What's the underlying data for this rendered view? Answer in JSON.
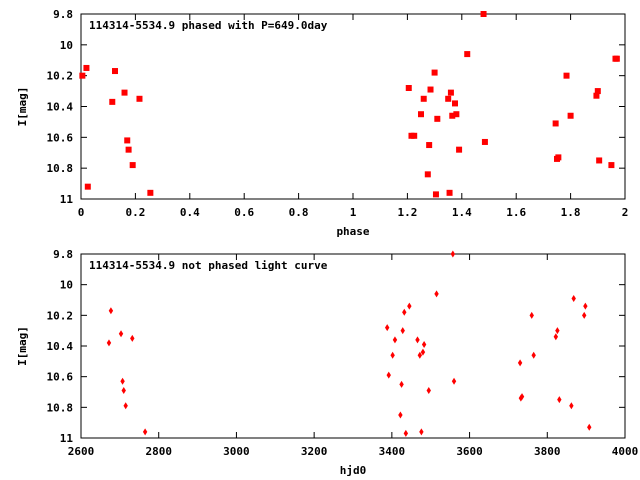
{
  "chart_data": [
    {
      "type": "scatter",
      "title": "114314-5534.9 phased with P=649.0day",
      "xlabel": "phase",
      "ylabel": "I[mag]",
      "xlim": [
        0,
        2
      ],
      "ylim": [
        9.8,
        11
      ],
      "y_inverted": true,
      "xticks": [
        "0",
        "0.2",
        "0.4",
        "0.6",
        "0.8",
        "1",
        "1.2",
        "1.4",
        "1.6",
        "1.8",
        "2"
      ],
      "yticks": [
        "9.8",
        "10",
        "10.2",
        "10.4",
        "10.6",
        "10.8",
        "11"
      ],
      "marker_color": "#ff0000",
      "series": [
        {
          "x": [
            0.005,
            0.02,
            0.025,
            0.115,
            0.125,
            0.16,
            0.17,
            0.175,
            0.19,
            0.215,
            0.255,
            1.205,
            1.215,
            1.225,
            1.25,
            1.26,
            1.275,
            1.28,
            1.285,
            1.3,
            1.305,
            1.31,
            1.35,
            1.355,
            1.36,
            1.365,
            1.375,
            1.38,
            1.39,
            1.42,
            1.48,
            1.485,
            1.745,
            1.75,
            1.755,
            1.785,
            1.8,
            1.895,
            1.9,
            1.905,
            1.95,
            1.965,
            1.97
          ],
          "y": [
            10.2,
            10.15,
            10.92,
            10.37,
            10.17,
            10.31,
            10.62,
            10.68,
            10.78,
            10.35,
            10.96,
            10.28,
            10.59,
            10.59,
            10.45,
            10.35,
            10.84,
            10.65,
            10.29,
            10.18,
            10.97,
            10.48,
            10.35,
            10.96,
            10.31,
            10.46,
            10.38,
            10.45,
            10.68,
            10.06,
            9.8,
            10.63,
            10.51,
            10.74,
            10.73,
            10.2,
            10.46,
            10.33,
            10.3,
            10.75,
            10.78,
            10.09,
            10.09
          ]
        }
      ]
    },
    {
      "type": "scatter",
      "title": "114314-5534.9 not phased light curve",
      "xlabel": "hjd0",
      "ylabel": "I[mag]",
      "xlim": [
        2600,
        4000
      ],
      "ylim": [
        9.8,
        11
      ],
      "y_inverted": true,
      "xticks": [
        "2600",
        "2800",
        "3000",
        "3200",
        "3400",
        "3600",
        "3800",
        "4000"
      ],
      "yticks": [
        "9.8",
        "10",
        "10.2",
        "10.4",
        "10.6",
        "10.8",
        "11"
      ],
      "marker_color": "#ff0000",
      "series": [
        {
          "x": [
            2672,
            2677,
            2703,
            2707,
            2710,
            2715,
            2732,
            2765,
            3388,
            3392,
            3402,
            3408,
            3422,
            3425,
            3428,
            3432,
            3436,
            3445,
            3466,
            3472,
            3476,
            3480,
            3483,
            3495,
            3515,
            3557,
            3560,
            3730,
            3732,
            3735,
            3760,
            3765,
            3822,
            3826,
            3831,
            3862,
            3868,
            3895,
            3898,
            3908
          ],
          "y": [
            10.38,
            10.17,
            10.32,
            10.63,
            10.69,
            10.79,
            10.35,
            10.96,
            10.28,
            10.59,
            10.46,
            10.36,
            10.85,
            10.65,
            10.3,
            10.18,
            10.97,
            10.14,
            10.36,
            10.46,
            10.96,
            10.44,
            10.39,
            10.69,
            10.06,
            9.8,
            10.63,
            10.51,
            10.74,
            10.73,
            10.2,
            10.46,
            10.34,
            10.3,
            10.75,
            10.79,
            10.09,
            10.2,
            10.14,
            10.93
          ]
        }
      ]
    }
  ]
}
